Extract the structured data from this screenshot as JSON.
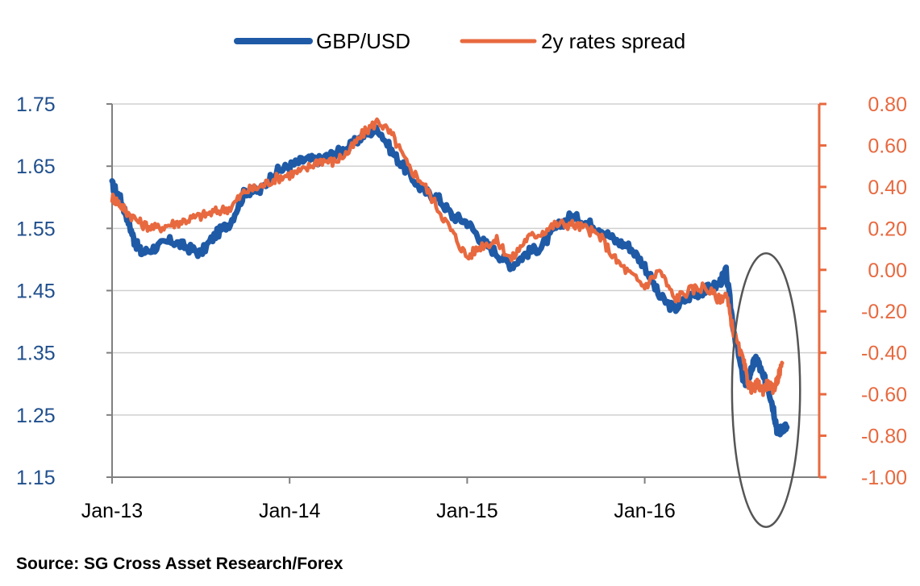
{
  "chart_data": {
    "type": "line",
    "title": "",
    "xlabel": "",
    "ylabel_left": "",
    "ylabel_right": "",
    "x_start": "2013-01",
    "x_end": "2016-08",
    "x_tick_labels": [
      "Jan-13",
      "Jan-14",
      "Jan-15",
      "Jan-16"
    ],
    "x_tick_months": [
      0,
      12,
      24,
      36
    ],
    "ylim_left": [
      1.15,
      1.75
    ],
    "yticks_left": [
      "1.75",
      "1.65",
      "1.55",
      "1.45",
      "1.35",
      "1.25",
      "1.15"
    ],
    "ylim_right": [
      -1.0,
      0.8
    ],
    "yticks_right": [
      "0.80",
      "0.60",
      "0.40",
      "0.20",
      "0.00",
      "-0.20",
      "-0.40",
      "-0.60",
      "-0.80",
      "-1.00"
    ],
    "legend_position": "top-center",
    "grid": "horizontal",
    "colors": {
      "gbp": "#1f5aa6",
      "spread": "#e8693f",
      "ellipse": "#555555"
    },
    "series": [
      {
        "name": "GBP/USD",
        "axis": "left",
        "x_month": [
          0,
          0.5,
          1,
          1.5,
          2,
          3,
          4,
          5,
          6,
          7,
          8,
          9,
          10,
          11,
          12,
          13,
          14,
          15,
          16,
          17,
          18,
          19,
          20,
          21,
          22,
          23,
          24,
          25,
          26,
          27,
          28,
          29,
          30,
          31,
          32,
          33,
          34,
          35,
          36,
          37,
          38,
          39,
          40,
          41,
          41.5,
          42,
          42.7,
          43,
          43.3,
          43.6,
          44,
          44.3,
          44.7,
          45,
          45.3,
          45.6
        ],
        "values": [
          1.62,
          1.6,
          1.57,
          1.53,
          1.51,
          1.52,
          1.53,
          1.52,
          1.51,
          1.54,
          1.56,
          1.61,
          1.61,
          1.64,
          1.65,
          1.66,
          1.66,
          1.67,
          1.68,
          1.7,
          1.71,
          1.67,
          1.64,
          1.61,
          1.6,
          1.57,
          1.56,
          1.53,
          1.51,
          1.49,
          1.51,
          1.52,
          1.55,
          1.57,
          1.56,
          1.55,
          1.53,
          1.52,
          1.49,
          1.44,
          1.42,
          1.44,
          1.45,
          1.46,
          1.48,
          1.39,
          1.3,
          1.31,
          1.33,
          1.34,
          1.31,
          1.3,
          1.26,
          1.22,
          1.23,
          1.23
        ]
      },
      {
        "name": "2y rates spread",
        "axis": "right",
        "x_month": [
          0,
          0.5,
          1,
          2,
          3,
          4,
          5,
          6,
          7,
          8,
          9,
          10,
          11,
          12,
          13,
          14,
          15,
          16,
          17,
          18,
          19,
          20,
          21,
          22,
          23,
          24,
          25,
          26,
          27,
          28,
          29,
          30,
          31,
          32,
          33,
          34,
          35,
          36,
          37,
          38,
          39,
          40,
          41,
          41.5,
          42,
          42.7,
          43,
          43.3,
          43.6,
          44,
          44.3,
          44.7,
          45,
          45.3
        ],
        "values": [
          0.35,
          0.32,
          0.28,
          0.22,
          0.2,
          0.22,
          0.24,
          0.26,
          0.28,
          0.3,
          0.38,
          0.4,
          0.44,
          0.46,
          0.48,
          0.53,
          0.52,
          0.57,
          0.66,
          0.72,
          0.64,
          0.5,
          0.42,
          0.3,
          0.18,
          0.06,
          0.12,
          0.14,
          0.05,
          0.15,
          0.18,
          0.22,
          0.22,
          0.2,
          0.16,
          0.05,
          -0.02,
          -0.08,
          0.0,
          -0.14,
          -0.1,
          -0.08,
          -0.14,
          -0.12,
          -0.3,
          -0.45,
          -0.55,
          -0.58,
          -0.55,
          -0.58,
          -0.55,
          -0.58,
          -0.52,
          -0.45
        ]
      }
    ],
    "annotations": [
      {
        "type": "ellipse",
        "label": "",
        "x_month_center": 44.2,
        "y_left_center": 1.29,
        "month_half_width": 2.3,
        "left_half_height": 0.22
      }
    ],
    "legend": [
      "GBP/USD",
      "2y rates spread"
    ]
  },
  "source_note": "Source: SG Cross Asset Research/Forex"
}
